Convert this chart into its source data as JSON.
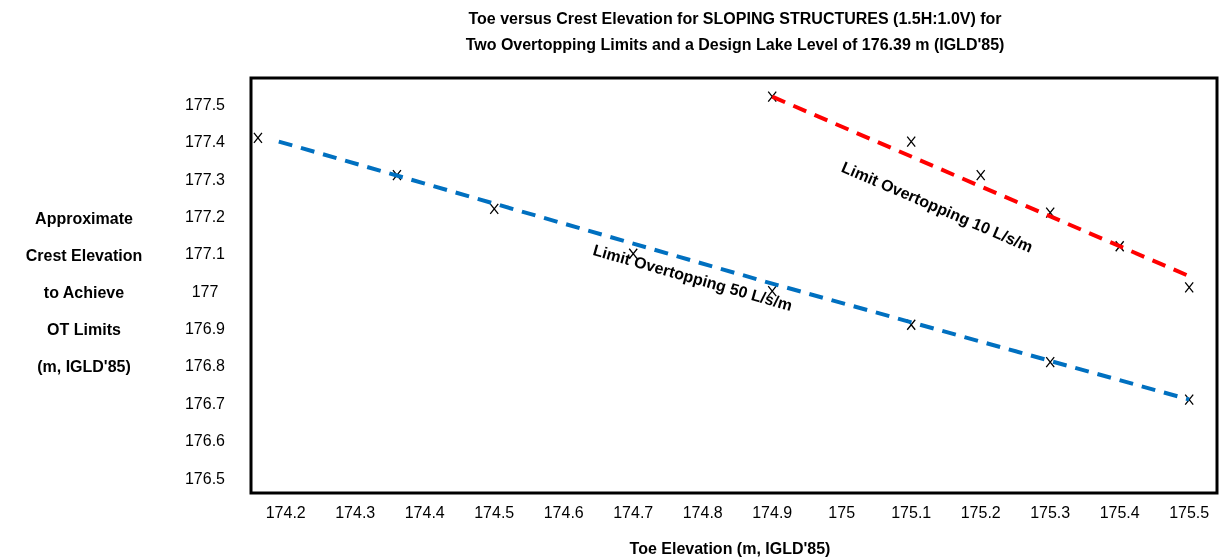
{
  "chart_data": {
    "type": "scatter",
    "title": "Toe versus Crest Elevation for SLOPING STRUCTURES (1.5H:1.0V) for\nTwo Overtopping Limits and a Design Lake Level of 176.39 m (IGLD'85)",
    "xlabel": "Toe Elevation (m, IGLD'85)",
    "ylabel": "Approximate\nCrest Elevation\nto Achieve\nOT Limits\n(m, IGLD'85)",
    "xlim": [
      174.15,
      175.54
    ],
    "ylim": [
      176.46,
      177.57
    ],
    "xticks": [
      174.2,
      174.3,
      174.4,
      174.5,
      174.6,
      174.7,
      174.8,
      174.9,
      175,
      175.1,
      175.2,
      175.3,
      175.4,
      175.5
    ],
    "yticks": [
      176.5,
      176.6,
      176.7,
      176.8,
      176.9,
      177,
      177.1,
      177.2,
      177.3,
      177.4,
      177.5
    ],
    "grid": false,
    "series": [
      {
        "marker": "cross",
        "color": "#000000",
        "x": [
          174.16,
          174.36,
          174.5,
          174.7,
          174.9,
          175.1,
          175.3,
          175.5
        ],
        "values": [
          177.41,
          177.31,
          177.22,
          177.1,
          177.0,
          176.91,
          176.81,
          176.71
        ]
      },
      {
        "marker": "cross",
        "color": "#000000",
        "x": [
          174.9,
          175.1,
          175.2,
          175.3,
          175.4,
          175.5
        ],
        "values": [
          177.52,
          177.4,
          177.31,
          177.21,
          177.12,
          177.01
        ]
      },
      {
        "type": "line",
        "marker": "none",
        "line_style": "dashed",
        "color": "#0070c0",
        "x": [
          174.19,
          174.9,
          175.5
        ],
        "values": [
          177.4,
          177.02,
          176.71
        ]
      },
      {
        "type": "line",
        "marker": "none",
        "line_style": "dashed",
        "color": "#ff0000",
        "x": [
          174.9,
          175.5
        ],
        "values": [
          177.52,
          177.04
        ]
      }
    ],
    "annotations": [
      "Limit Overtopping 50 L/s/m",
      "Limit Overtopping 10 L/s/m"
    ]
  }
}
